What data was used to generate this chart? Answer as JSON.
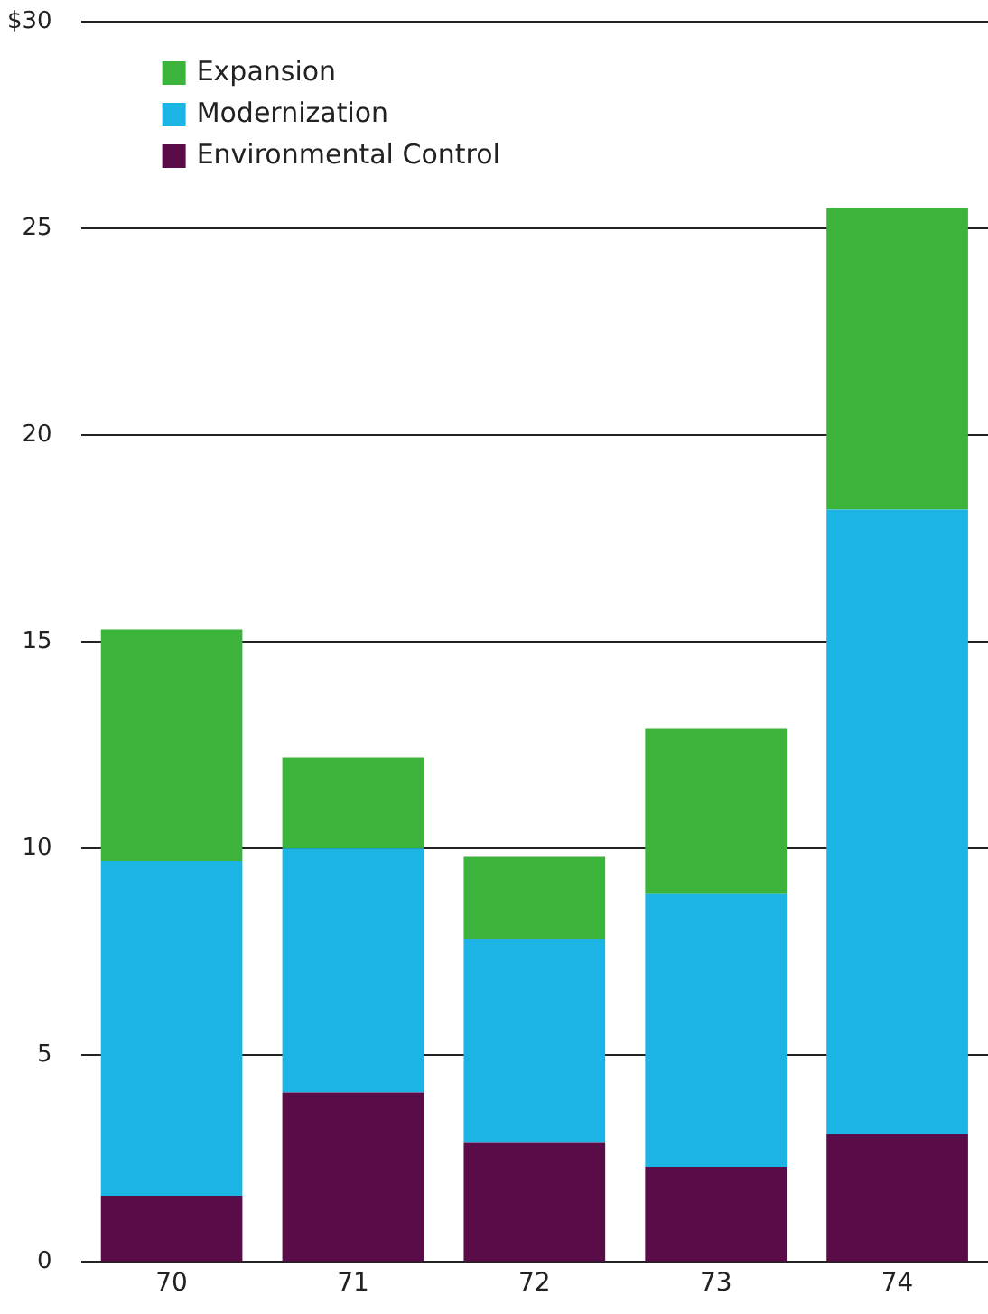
{
  "chart_data": {
    "type": "bar",
    "stacked": true,
    "categories": [
      "70",
      "71",
      "72",
      "73",
      "74"
    ],
    "series": [
      {
        "name": "Environmental Control",
        "color": "#5a0c48",
        "values": [
          1.6,
          4.1,
          2.9,
          2.3,
          3.1
        ]
      },
      {
        "name": "Modernization",
        "color": "#1cb4e4",
        "values": [
          8.1,
          5.9,
          4.9,
          6.6,
          15.1
        ]
      },
      {
        "name": "Expansion",
        "color": "#3cb43c",
        "values": [
          5.6,
          2.2,
          2.0,
          4.0,
          7.3
        ]
      }
    ],
    "ylim": [
      0,
      30
    ],
    "yticks": [
      0,
      5,
      10,
      15,
      20,
      25,
      {
        "value": 30,
        "label": "$30"
      }
    ],
    "grid": "y",
    "legend": "top left"
  }
}
